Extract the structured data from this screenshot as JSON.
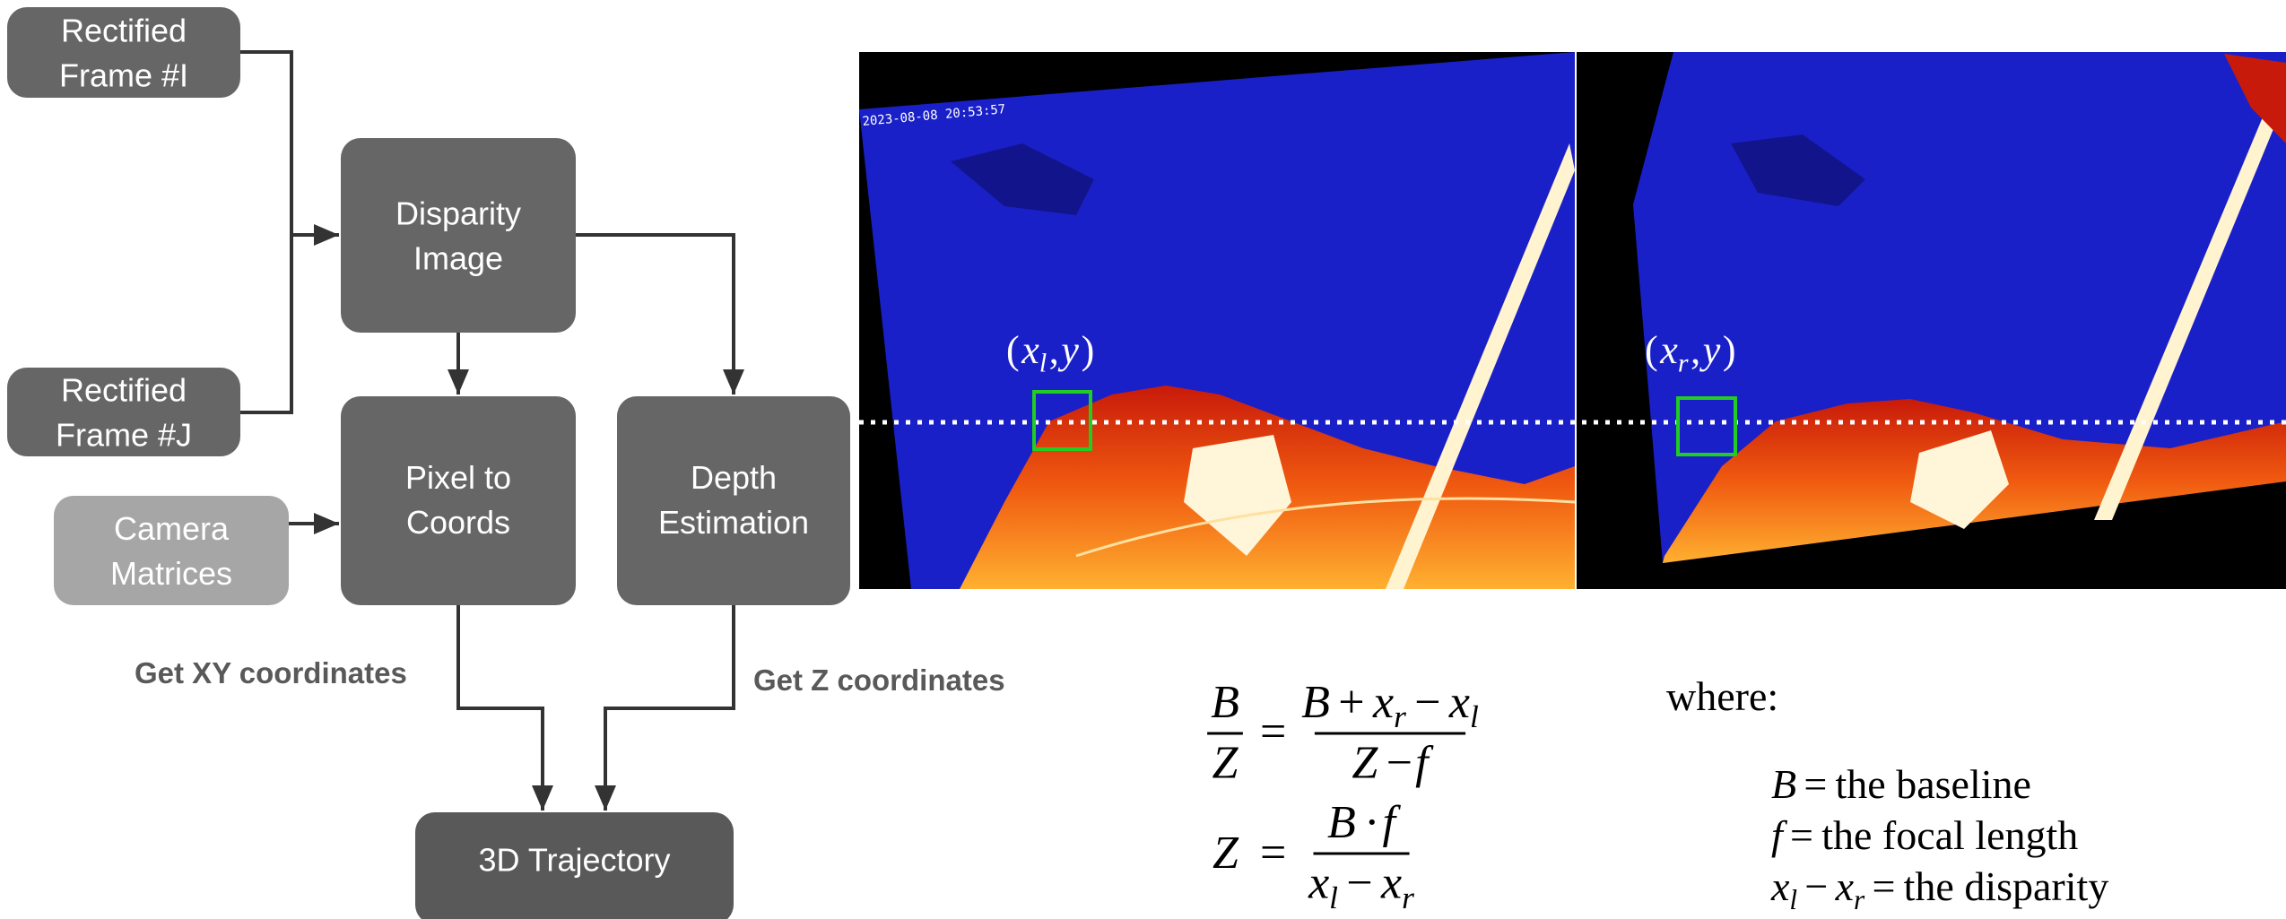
{
  "nodes": [
    {
      "lines": [
        "Rectified",
        "Frame #I"
      ]
    },
    {
      "lines": [
        "Rectified",
        "Frame #J"
      ]
    },
    {
      "lines": [
        "Disparity",
        "Image"
      ]
    },
    {
      "lines": [
        "Pixel to",
        "Coords"
      ]
    },
    {
      "lines": [
        "Depth",
        "Estimation"
      ]
    },
    {
      "lines": [
        "Camera",
        "Matrices"
      ]
    },
    {
      "lines": [
        "3D Trajectory"
      ]
    }
  ],
  "edge_labels": [
    "Get XY coordinates",
    "Get Z coordinates"
  ],
  "image": {
    "timestamp": "2023-08-08 20:53:57",
    "left_label": [
      "(",
      [
        "x",
        "l"
      ],
      ",",
      "y",
      ")"
    ],
    "right_label": [
      "(",
      [
        "x",
        "r"
      ],
      ",",
      "y",
      ")"
    ]
  },
  "equations": [
    {
      "lhs": {
        "num": [
          "B"
        ],
        "den": [
          "Z"
        ]
      },
      "eq": "=",
      "rhs": {
        "num": [
          "B",
          "+",
          [
            "x",
            "r"
          ],
          "−",
          [
            "x",
            "l"
          ]
        ],
        "den": [
          "Z",
          "−",
          "f"
        ]
      }
    },
    {
      "lhs": [
        "Z"
      ],
      "eq": "=",
      "rhs": {
        "num": [
          "B",
          "·",
          "f"
        ],
        "den": [
          [
            "x",
            "l"
          ],
          "−",
          [
            "x",
            "r"
          ]
        ]
      }
    }
  ],
  "where": "where:",
  "definitions": [
    [
      "B",
      "=",
      "the baseline"
    ],
    [
      "f",
      "=",
      "the focal length"
    ],
    [
      [
        "x",
        "l"
      ],
      "−",
      [
        "x",
        "r"
      ],
      "=",
      "the disparity"
    ]
  ]
}
